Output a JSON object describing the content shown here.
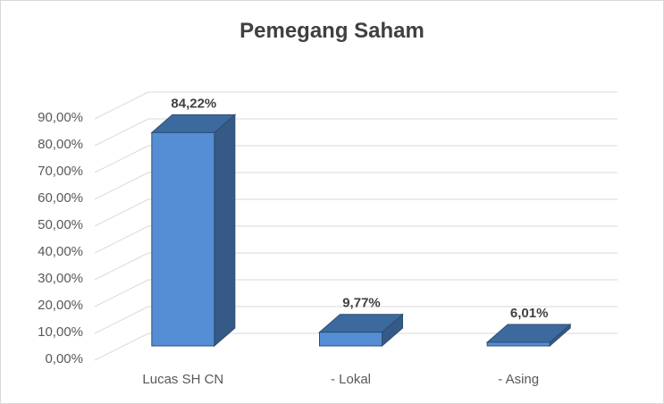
{
  "chart_data": {
    "type": "bar",
    "title": "Pemegang Saham",
    "categories": [
      "Lucas SH CN",
      "- Lokal",
      "- Asing"
    ],
    "values": [
      84.22,
      9.77,
      6.01
    ],
    "data_labels": [
      "84,22%",
      "9,77%",
      "6,01%"
    ],
    "ylim": [
      0,
      90
    ],
    "yticks": [
      0,
      10,
      20,
      30,
      40,
      50,
      60,
      70,
      80,
      90
    ],
    "ytick_labels": [
      "0,00%",
      "10,00%",
      "20,00%",
      "30,00%",
      "40,00%",
      "50,00%",
      "60,00%",
      "70,00%",
      "80,00%",
      "90,00%"
    ],
    "grid": true,
    "style": "3d-column",
    "bar_color": "#558ed5",
    "bar_side_color": "#355a85",
    "bar_top_color": "#3d6a9e"
  }
}
